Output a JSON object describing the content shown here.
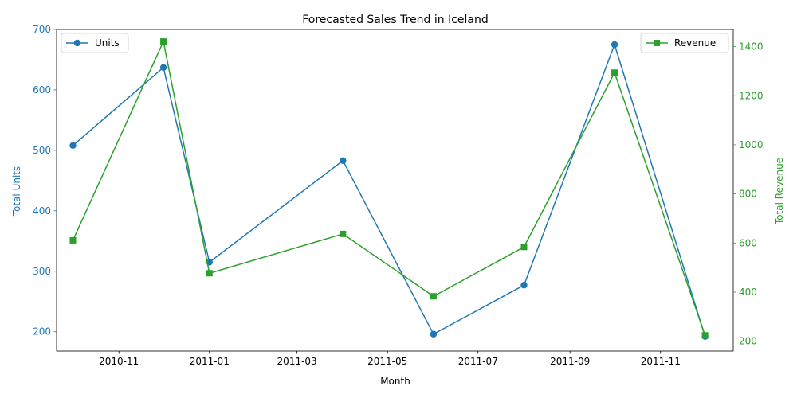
{
  "chart_data": {
    "type": "line",
    "title": "Forecasted Sales Trend in Iceland",
    "xlabel": "Month",
    "ylabel_left": "Total Units",
    "ylabel_right": "Total Revenue",
    "x": [
      "2010-10-01",
      "2010-12-01",
      "2011-01-01",
      "2011-04-01",
      "2011-06-01",
      "2011-08-01",
      "2011-10-01",
      "2011-12-01"
    ],
    "x_ticks": [
      "2010-11",
      "2011-01",
      "2011-03",
      "2011-05",
      "2011-07",
      "2011-09",
      "2011-11"
    ],
    "xlim": [
      "2010-09-20",
      "2011-12-20"
    ],
    "series": [
      {
        "name": "Units",
        "axis": "left",
        "color": "#1f77b4",
        "marker": "circle",
        "values": [
          508,
          637,
          315,
          483,
          196,
          277,
          675,
          192
        ]
      },
      {
        "name": "Revenue",
        "axis": "right",
        "color": "#2ca02c",
        "marker": "square",
        "values": [
          611,
          1421,
          477,
          637,
          383,
          584,
          1294,
          224
        ]
      }
    ],
    "ylim_left": [
      168,
      700
    ],
    "yticks_left": [
      200,
      300,
      400,
      500,
      600,
      700
    ],
    "ylim_right": [
      160,
      1470
    ],
    "yticks_right": [
      200,
      400,
      600,
      800,
      1000,
      1200,
      1400
    ],
    "legend_left": "top-left",
    "legend_right": "top-right",
    "grid": false
  }
}
